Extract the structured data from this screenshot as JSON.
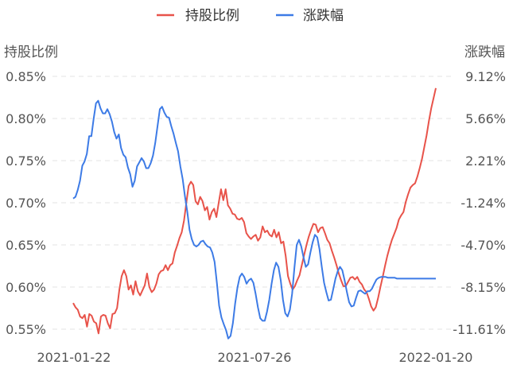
{
  "chart_data": {
    "type": "line",
    "x_tick_labels": [
      "2021-01-22",
      "2021-07-26",
      "2022-01-20"
    ],
    "left_axis": {
      "label": "持股比例",
      "ticks": [
        "0.85%",
        "0.80%",
        "0.75%",
        "0.70%",
        "0.65%",
        "0.60%",
        "0.55%"
      ],
      "ylim": [
        0.53,
        0.86
      ]
    },
    "right_axis": {
      "label": "涨跌幅",
      "ticks": [
        "9.12%",
        "5.66%",
        "2.21%",
        "-1.24%",
        "-4.70%",
        "-8.15%",
        "-11.61%"
      ]
    },
    "grid": true,
    "legend_position": "top-center",
    "series": [
      {
        "name": "持股比例",
        "color": "#e8534a",
        "axis": "left",
        "values": [
          0.581,
          0.576,
          0.573,
          0.565,
          0.563,
          0.567,
          0.553,
          0.568,
          0.566,
          0.559,
          0.557,
          0.545,
          0.565,
          0.567,
          0.566,
          0.557,
          0.551,
          0.568,
          0.569,
          0.575,
          0.597,
          0.613,
          0.62,
          0.613,
          0.597,
          0.602,
          0.591,
          0.607,
          0.595,
          0.59,
          0.596,
          0.602,
          0.616,
          0.6,
          0.594,
          0.597,
          0.604,
          0.615,
          0.619,
          0.62,
          0.626,
          0.62,
          0.626,
          0.628,
          0.641,
          0.649,
          0.658,
          0.665,
          0.679,
          0.7,
          0.72,
          0.725,
          0.721,
          0.702,
          0.698,
          0.707,
          0.702,
          0.691,
          0.695,
          0.68,
          0.689,
          0.693,
          0.683,
          0.7,
          0.716,
          0.703,
          0.716,
          0.697,
          0.693,
          0.687,
          0.686,
          0.681,
          0.68,
          0.682,
          0.677,
          0.664,
          0.66,
          0.657,
          0.66,
          0.662,
          0.655,
          0.659,
          0.672,
          0.665,
          0.667,
          0.662,
          0.66,
          0.668,
          0.659,
          0.665,
          0.652,
          0.654,
          0.637,
          0.613,
          0.604,
          0.597,
          0.601,
          0.608,
          0.614,
          0.626,
          0.638,
          0.65,
          0.66,
          0.668,
          0.675,
          0.674,
          0.665,
          0.67,
          0.671,
          0.664,
          0.656,
          0.652,
          0.643,
          0.635,
          0.626,
          0.616,
          0.608,
          0.601,
          0.601,
          0.606,
          0.611,
          0.612,
          0.609,
          0.612,
          0.606,
          0.603,
          0.597,
          0.594,
          0.586,
          0.577,
          0.572,
          0.576,
          0.587,
          0.6,
          0.612,
          0.625,
          0.637,
          0.647,
          0.656,
          0.663,
          0.67,
          0.68,
          0.685,
          0.689,
          0.701,
          0.71,
          0.718,
          0.721,
          0.723,
          0.731,
          0.741,
          0.752,
          0.766,
          0.78,
          0.797,
          0.812,
          0.824,
          0.836
        ]
      },
      {
        "name": "涨跌幅",
        "color": "#3d7be6",
        "axis": "right",
        "values": [
          0.705,
          0.707,
          0.715,
          0.726,
          0.744,
          0.749,
          0.758,
          0.779,
          0.779,
          0.8,
          0.818,
          0.821,
          0.812,
          0.806,
          0.806,
          0.811,
          0.805,
          0.796,
          0.784,
          0.776,
          0.781,
          0.765,
          0.757,
          0.754,
          0.742,
          0.734,
          0.719,
          0.726,
          0.743,
          0.748,
          0.753,
          0.749,
          0.741,
          0.741,
          0.747,
          0.756,
          0.771,
          0.791,
          0.811,
          0.814,
          0.807,
          0.802,
          0.801,
          0.791,
          0.782,
          0.771,
          0.761,
          0.743,
          0.728,
          0.708,
          0.69,
          0.668,
          0.657,
          0.65,
          0.648,
          0.65,
          0.654,
          0.655,
          0.651,
          0.648,
          0.647,
          0.641,
          0.63,
          0.605,
          0.578,
          0.564,
          0.556,
          0.549,
          0.539,
          0.542,
          0.557,
          0.58,
          0.599,
          0.612,
          0.616,
          0.612,
          0.604,
          0.608,
          0.61,
          0.605,
          0.592,
          0.576,
          0.563,
          0.56,
          0.56,
          0.571,
          0.585,
          0.604,
          0.62,
          0.629,
          0.624,
          0.608,
          0.585,
          0.569,
          0.565,
          0.573,
          0.592,
          0.623,
          0.65,
          0.656,
          0.648,
          0.635,
          0.624,
          0.627,
          0.641,
          0.653,
          0.662,
          0.659,
          0.645,
          0.624,
          0.605,
          0.594,
          0.584,
          0.585,
          0.597,
          0.61,
          0.619,
          0.624,
          0.62,
          0.608,
          0.594,
          0.582,
          0.577,
          0.578,
          0.587,
          0.595,
          0.596,
          0.594,
          0.592,
          0.595,
          0.595,
          0.598,
          0.604,
          0.609,
          0.611,
          0.612,
          0.612,
          0.612,
          0.611,
          0.611,
          0.611,
          0.611,
          0.61,
          0.61,
          0.61,
          0.61,
          0.61,
          0.61,
          0.61,
          0.61,
          0.61,
          0.61,
          0.61,
          0.61,
          0.61,
          0.61,
          0.61,
          0.61,
          0.61,
          0.61
        ]
      }
    ]
  }
}
